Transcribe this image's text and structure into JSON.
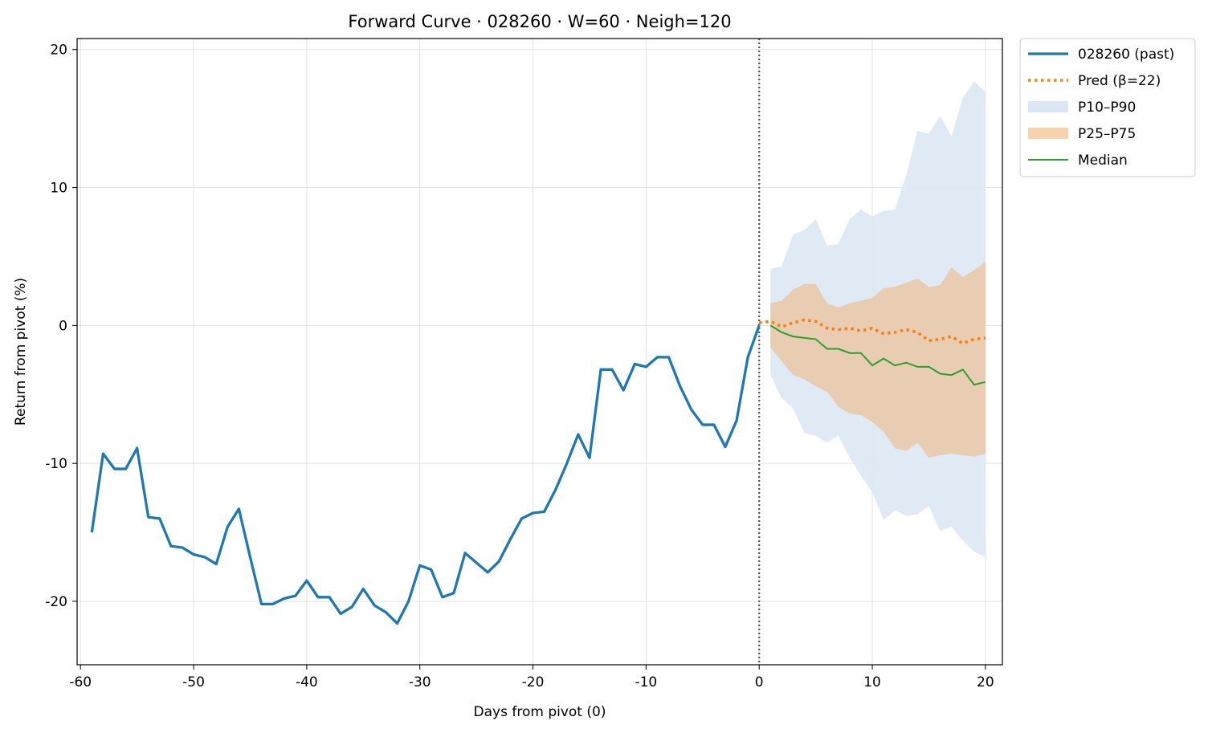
{
  "chart_data": {
    "type": "line",
    "title": "Forward Curve · 028260 · W=60 · Neigh=120",
    "xlabel": "Days from pivot (0)",
    "ylabel": "Return from pivot (%)",
    "xlim": [
      -60.3,
      21.5
    ],
    "ylim": [
      -24.6,
      20.8
    ],
    "xticks": [
      -60,
      -50,
      -40,
      -30,
      -20,
      -10,
      0,
      10,
      20
    ],
    "yticks": [
      20,
      10,
      0,
      -10,
      -20
    ],
    "grid": true,
    "legend_position": "outside-top-right",
    "pivot_line_x": 0,
    "colors": {
      "past": "#1f77b4",
      "pred": "#ff7f0e",
      "p10_p90": "#dbe8f4",
      "p25_p75": "#f9d2ad",
      "median": "#2ca02c",
      "pivot": "#555555",
      "grid": "#e3e3e3"
    },
    "legend": [
      {
        "label": "028260 (past)",
        "kind": "line",
        "key": "past"
      },
      {
        "label": "Pred (β=22)",
        "kind": "dotted",
        "key": "pred"
      },
      {
        "label": "P10–P90",
        "kind": "patch",
        "key": "p10_p90"
      },
      {
        "label": "P25–P75",
        "kind": "patch",
        "key": "p25_p75"
      },
      {
        "label": "Median",
        "kind": "thin",
        "key": "median"
      }
    ],
    "past": {
      "name": "028260 (past)",
      "x": [
        -59,
        -58,
        -57,
        -56,
        -55,
        -54,
        -53,
        -52,
        -51,
        -50,
        -49,
        -48,
        -47,
        -46,
        -45,
        -44,
        -43,
        -42,
        -41,
        -40,
        -39,
        -38,
        -37,
        -36,
        -35,
        -34,
        -33,
        -32,
        -31,
        -30,
        -29,
        -28,
        -27,
        -26,
        -25,
        -24,
        -23,
        -22,
        -21,
        -20,
        -19,
        -18,
        -17,
        -16,
        -15,
        -14,
        -13,
        -12,
        -11,
        -10,
        -9,
        -8,
        -7,
        -6,
        -5,
        -4,
        -3,
        -2,
        -1,
        0
      ],
      "y": [
        -15.0,
        -9.3,
        -10.4,
        -10.4,
        -8.9,
        -13.9,
        -14.0,
        -16.0,
        -16.1,
        -16.6,
        -16.8,
        -17.3,
        -14.6,
        -13.3,
        -16.8,
        -20.2,
        -20.2,
        -19.8,
        -19.6,
        -18.5,
        -19.7,
        -19.7,
        -20.9,
        -20.4,
        -19.1,
        -20.3,
        -20.8,
        -21.6,
        -20.0,
        -17.4,
        -17.7,
        -19.7,
        -19.4,
        -16.5,
        -17.2,
        -17.9,
        -17.1,
        -15.5,
        -14.0,
        -13.6,
        -13.5,
        -11.9,
        -10.0,
        -7.9,
        -9.6,
        -3.2,
        -3.2,
        -4.7,
        -2.8,
        -3.0,
        -2.3,
        -2.3,
        -4.4,
        -6.1,
        -7.2,
        -7.2,
        -8.8,
        -6.9,
        -2.3,
        0.0
      ]
    },
    "forecast_x": [
      1,
      2,
      3,
      4,
      5,
      6,
      7,
      8,
      9,
      10,
      11,
      12,
      13,
      14,
      15,
      16,
      17,
      18,
      19,
      20
    ],
    "pred": {
      "name": "Pred (β=22)",
      "x": [
        0,
        1,
        2,
        3,
        4,
        5,
        6,
        7,
        8,
        9,
        10,
        11,
        12,
        13,
        14,
        15,
        16,
        17,
        18,
        19,
        20
      ],
      "y": [
        0.2,
        0.3,
        -0.1,
        0.2,
        0.4,
        0.3,
        -0.2,
        -0.3,
        -0.2,
        -0.4,
        -0.2,
        -0.6,
        -0.5,
        -0.3,
        -0.5,
        -1.1,
        -1.0,
        -0.8,
        -1.3,
        -1.0,
        -0.9
      ]
    },
    "median": {
      "name": "Median",
      "y": [
        0.0,
        -0.5,
        -0.8,
        -0.9,
        -1.0,
        -1.7,
        -1.7,
        -2.0,
        -2.0,
        -2.9,
        -2.4,
        -2.9,
        -2.7,
        -3.0,
        -3.0,
        -3.5,
        -3.6,
        -3.2,
        -4.3,
        -4.1
      ]
    },
    "p10_p90": {
      "name": "P10–P90",
      "upper": [
        4.1,
        4.3,
        6.6,
        6.9,
        7.7,
        5.8,
        5.9,
        7.7,
        8.4,
        7.9,
        8.3,
        8.4,
        10.9,
        14.1,
        13.9,
        15.2,
        13.7,
        16.5,
        17.7,
        16.9
      ],
      "lower": [
        -3.6,
        -5.3,
        -6.0,
        -7.8,
        -8.0,
        -8.5,
        -8.0,
        -9.6,
        -10.9,
        -12.1,
        -14.1,
        -13.4,
        -13.8,
        -13.7,
        -13.1,
        -14.9,
        -14.6,
        -15.6,
        -16.4,
        -16.8
      ]
    },
    "p25_p75": {
      "name": "P25–P75",
      "upper": [
        1.6,
        1.8,
        2.6,
        3.0,
        3.0,
        1.6,
        1.3,
        1.6,
        1.8,
        2.0,
        2.7,
        2.8,
        3.1,
        3.4,
        2.8,
        2.9,
        4.2,
        3.5,
        4.0,
        4.6
      ],
      "lower": [
        -1.6,
        -2.6,
        -3.6,
        -3.9,
        -4.4,
        -4.8,
        -5.9,
        -6.4,
        -6.5,
        -7.0,
        -7.7,
        -8.9,
        -9.1,
        -8.5,
        -9.6,
        -9.4,
        -9.3,
        -9.4,
        -9.5,
        -9.3
      ]
    }
  }
}
